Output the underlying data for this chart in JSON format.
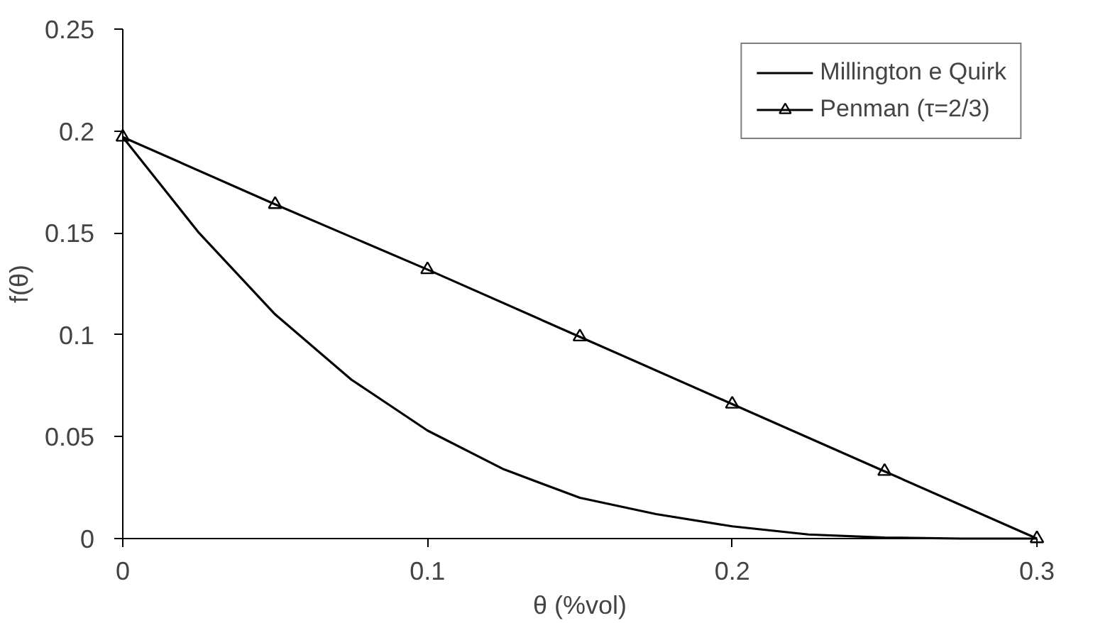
{
  "chart_data": {
    "type": "line",
    "xlabel": "θ (%vol)",
    "ylabel": "f(θ)",
    "xlim": [
      0,
      0.3
    ],
    "xticks": [
      0,
      0.1,
      0.2,
      0.3
    ],
    "ylim": [
      0,
      0.25
    ],
    "yticks": [
      0,
      0.05,
      0.1,
      0.15,
      0.2,
      0.25
    ],
    "grid": false,
    "legend": "top right",
    "series": [
      {
        "name": "Millington e Quirk",
        "color": "#000000",
        "marker": "none",
        "x": [
          0,
          0.025,
          0.05,
          0.075,
          0.1,
          0.125,
          0.15,
          0.175,
          0.2,
          0.225,
          0.25,
          0.275,
          0.3
        ],
        "values": [
          0.197,
          0.15,
          0.11,
          0.078,
          0.053,
          0.034,
          0.02,
          0.012,
          0.006,
          0.002,
          0.0005,
          0,
          0
        ]
      },
      {
        "name": "Penman (τ=2/3)",
        "color": "#000000",
        "marker": "triangle",
        "x": [
          0,
          0.05,
          0.1,
          0.15,
          0.2,
          0.25,
          0.3
        ],
        "values": [
          0.197,
          0.164,
          0.132,
          0.099,
          0.066,
          0.033,
          0
        ]
      }
    ]
  }
}
